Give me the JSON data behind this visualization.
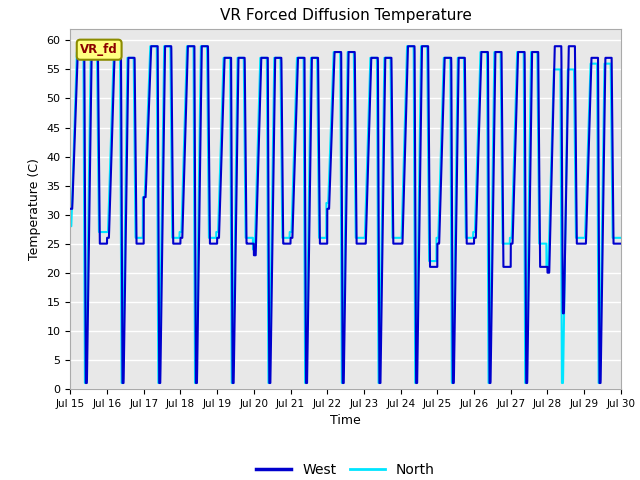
{
  "title": "VR Forced Diffusion Temperature",
  "xlabel": "Time",
  "ylabel": "Temperature (C)",
  "ylim": [
    0,
    62
  ],
  "yticks": [
    0,
    5,
    10,
    15,
    20,
    25,
    30,
    35,
    40,
    45,
    50,
    55,
    60
  ],
  "x_tick_labels": [
    "Jul 15",
    "Jul 16",
    "Jul 17",
    "Jul 18",
    "Jul 19",
    "Jul 20",
    "Jul 21",
    "Jul 22",
    "Jul 23",
    "Jul 24",
    "Jul 25",
    "Jul 26",
    "Jul 27",
    "Jul 28",
    "Jul 29",
    "Jul 30"
  ],
  "west_color": "#0000cd",
  "north_color": "#00e5ff",
  "label_box_color": "#ffff80",
  "label_box_edge": "#8B8B00",
  "label_text": "VR_fd",
  "label_text_color": "#8B0000",
  "bg_color": "#e8e8e8",
  "legend_west": "West",
  "legend_north": "North",
  "grid_color": "#ffffff",
  "fig_bg": "#ffffff",
  "west_lw": 1.5,
  "north_lw": 1.5
}
